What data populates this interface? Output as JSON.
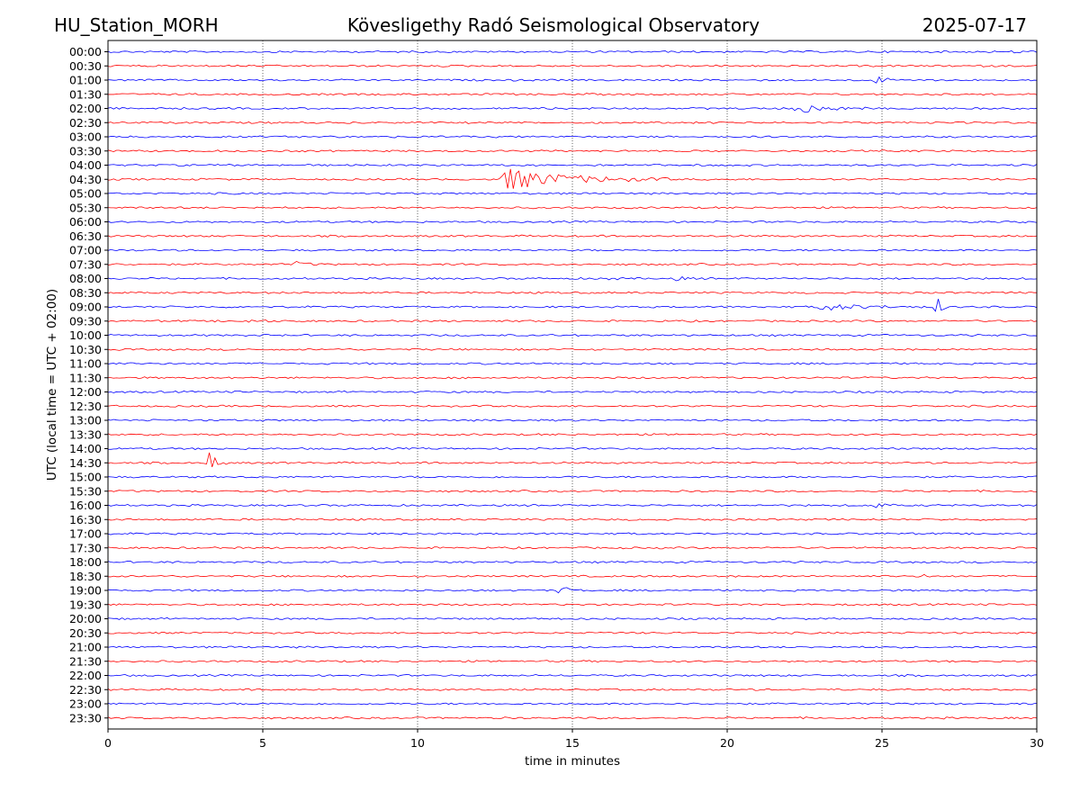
{
  "header": {
    "station": "HU_Station_MORH",
    "title": "Kövesligethy Radó Seismological Observatory",
    "date": "2025-07-17"
  },
  "chart_data": {
    "type": "line",
    "title": "Kövesligethy Radó Seismological Observatory",
    "xlabel": "time in minutes",
    "ylabel": "UTC (local time = UTC + 02:00)",
    "xlim": [
      0,
      30
    ],
    "x_ticks": [
      "0",
      "5",
      "10",
      "15",
      "20",
      "25",
      "30"
    ],
    "grid": "vertical dotted",
    "trace_colors": [
      "#0000ff",
      "#ff0000"
    ],
    "rows": [
      {
        "label": "00:00",
        "events": [
          {
            "t": 29.3,
            "amp": 2,
            "dur": 0.9
          }
        ]
      },
      {
        "label": "00:30",
        "events": []
      },
      {
        "label": "01:00",
        "events": [
          {
            "t": 24.8,
            "amp": 4,
            "dur": 1.0
          }
        ]
      },
      {
        "label": "01:30",
        "events": []
      },
      {
        "label": "02:00",
        "events": [
          {
            "t": 22.2,
            "amp": 6,
            "dur": 2.5
          }
        ]
      },
      {
        "label": "02:30",
        "events": []
      },
      {
        "label": "03:00",
        "events": []
      },
      {
        "label": "03:30",
        "events": []
      },
      {
        "label": "04:00",
        "events": []
      },
      {
        "label": "04:30",
        "events": [
          {
            "t": 12.7,
            "amp": 13,
            "dur": 5.5
          }
        ]
      },
      {
        "label": "05:00",
        "events": []
      },
      {
        "label": "05:30",
        "events": []
      },
      {
        "label": "06:00",
        "events": [
          {
            "t": 29.6,
            "amp": 2,
            "dur": 0.4
          }
        ]
      },
      {
        "label": "06:30",
        "events": []
      },
      {
        "label": "07:00",
        "events": []
      },
      {
        "label": "07:30",
        "events": [
          {
            "t": 6.0,
            "amp": 3,
            "dur": 1.0
          }
        ]
      },
      {
        "label": "08:00",
        "events": [
          {
            "t": 16.2,
            "amp": 2,
            "dur": 0.6
          },
          {
            "t": 18.3,
            "amp": 2,
            "dur": 1.0
          }
        ]
      },
      {
        "label": "08:30",
        "events": []
      },
      {
        "label": "09:00",
        "events": [
          {
            "t": 23.0,
            "amp": 4,
            "dur": 3.5
          },
          {
            "t": 26.8,
            "amp": 11,
            "dur": 0.4
          }
        ]
      },
      {
        "label": "09:30",
        "events": [
          {
            "t": 4.5,
            "amp": 2,
            "dur": 1.0
          }
        ]
      },
      {
        "label": "10:00",
        "events": []
      },
      {
        "label": "10:30",
        "events": []
      },
      {
        "label": "11:00",
        "events": []
      },
      {
        "label": "11:30",
        "events": []
      },
      {
        "label": "12:00",
        "events": []
      },
      {
        "label": "12:30",
        "events": []
      },
      {
        "label": "13:00",
        "events": []
      },
      {
        "label": "13:30",
        "events": []
      },
      {
        "label": "14:00",
        "events": []
      },
      {
        "label": "14:30",
        "events": [
          {
            "t": 3.2,
            "amp": 15,
            "dur": 0.7
          }
        ]
      },
      {
        "label": "15:00",
        "events": []
      },
      {
        "label": "15:30",
        "events": []
      },
      {
        "label": "16:00",
        "events": [
          {
            "t": 24.7,
            "amp": 4,
            "dur": 0.8
          }
        ]
      },
      {
        "label": "16:30",
        "events": []
      },
      {
        "label": "17:00",
        "events": []
      },
      {
        "label": "17:30",
        "events": []
      },
      {
        "label": "18:00",
        "events": []
      },
      {
        "label": "18:30",
        "events": [
          {
            "t": 26.3,
            "amp": 2,
            "dur": 0.5
          }
        ]
      },
      {
        "label": "19:00",
        "events": [
          {
            "t": 14.6,
            "amp": 5,
            "dur": 0.8
          }
        ]
      },
      {
        "label": "19:30",
        "events": []
      },
      {
        "label": "20:00",
        "events": []
      },
      {
        "label": "20:30",
        "events": []
      },
      {
        "label": "21:00",
        "events": []
      },
      {
        "label": "21:30",
        "events": []
      },
      {
        "label": "22:00",
        "events": []
      },
      {
        "label": "22:30",
        "events": []
      },
      {
        "label": "23:00",
        "events": []
      },
      {
        "label": "23:30",
        "events": []
      }
    ]
  }
}
